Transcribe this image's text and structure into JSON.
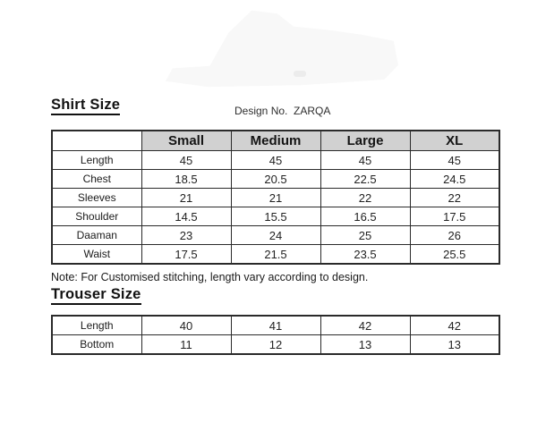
{
  "document": {
    "shirt_section_title": "Shirt Size",
    "design_no": "Design No.  ZARQA",
    "note": "Note: For Customised stitching, length vary according to design.",
    "trouser_section_title": "Trouser Size"
  },
  "shirt_table": {
    "corner": "",
    "columns": [
      "Small",
      "Medium",
      "Large",
      "XL"
    ],
    "rows": [
      {
        "label": "Length",
        "values": [
          "45",
          "45",
          "45",
          "45"
        ]
      },
      {
        "label": "Chest",
        "values": [
          "18.5",
          "20.5",
          "22.5",
          "24.5"
        ]
      },
      {
        "label": "Sleeves",
        "values": [
          "21",
          "21",
          "22",
          "22"
        ]
      },
      {
        "label": "Shoulder",
        "values": [
          "14.5",
          "15.5",
          "16.5",
          "17.5"
        ]
      },
      {
        "label": "Daaman",
        "values": [
          "23",
          "24",
          "25",
          "26"
        ]
      },
      {
        "label": "Waist",
        "values": [
          "17.5",
          "21.5",
          "23.5",
          "25.5"
        ]
      }
    ]
  },
  "trouser_table": {
    "rows": [
      {
        "label": "Length",
        "values": [
          "40",
          "41",
          "42",
          "42"
        ]
      },
      {
        "label": "Bottom",
        "values": [
          "11",
          "12",
          "13",
          "13"
        ]
      }
    ]
  },
  "colors": {
    "header_bg": "#d1d1d1",
    "border": "#2a2a2a",
    "text": "#1b1b1b"
  }
}
